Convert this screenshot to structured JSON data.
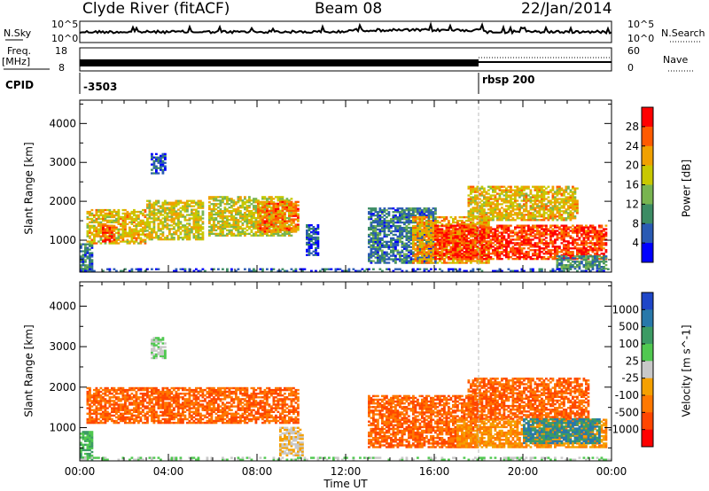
{
  "header": {
    "title": "Clyde River (fitACF)",
    "beam": "Beam 08",
    "date": "22/Jan/2014"
  },
  "strips": {
    "nsky_label": "N.Sky",
    "nsky_ticks": [
      "10^5",
      "10^0"
    ],
    "nsearch_label": "N.Search",
    "nsearch_ticks": [
      "10^5",
      "10^0"
    ],
    "freq_label": "Freq.",
    "freq_unit": "[MHz]",
    "freq_ticks": [
      "18",
      "8"
    ],
    "nave_label": "Nave",
    "nave_ticks": [
      "60",
      "0"
    ],
    "cpid_label": "CPID",
    "cpid_values": [
      {
        "label": "-3503",
        "start_hour": 0
      },
      {
        "label": "rbsp 200",
        "start_hour": 18
      }
    ]
  },
  "chart_data": [
    {
      "type": "heatmap",
      "name": "power-panel",
      "x_unit": "hours UT",
      "xlim": [
        0,
        24
      ],
      "ylim": [
        180,
        4600
      ],
      "ylabel": "Slant Range [km]",
      "yticks": [
        1000,
        2000,
        3000,
        4000
      ],
      "colorbar_label": "Power [dB]",
      "colorbar_ticks": [
        4,
        8,
        12,
        16,
        20,
        24,
        28
      ],
      "colorbar_range": [
        0,
        32
      ],
      "colorbar_colors": [
        "#0000ff",
        "#2a5ab3",
        "#3c8c64",
        "#78b450",
        "#c8c800",
        "#f0a000",
        "#ff5a00",
        "#ff0000"
      ],
      "features": [
        {
          "t0": 0.0,
          "t1": 0.6,
          "r0": 200,
          "r1": 900,
          "value": 8
        },
        {
          "t0": 0.3,
          "t1": 3.0,
          "r0": 900,
          "r1": 1800,
          "value": 20
        },
        {
          "t0": 1.0,
          "t1": 1.6,
          "r0": 950,
          "r1": 1400,
          "value": 28
        },
        {
          "t0": 3.2,
          "t1": 3.9,
          "r0": 2700,
          "r1": 3200,
          "value": 6
        },
        {
          "t0": 3.0,
          "t1": 5.5,
          "r0": 1000,
          "r1": 2000,
          "value": 18
        },
        {
          "t0": 5.8,
          "t1": 9.5,
          "r0": 1100,
          "r1": 2100,
          "value": 18
        },
        {
          "t0": 8.0,
          "t1": 9.8,
          "r0": 1200,
          "r1": 2000,
          "value": 24
        },
        {
          "t0": 10.2,
          "t1": 10.7,
          "r0": 600,
          "r1": 1400,
          "value": 6
        },
        {
          "t0": 13.0,
          "t1": 16.0,
          "r0": 400,
          "r1": 1800,
          "value": 8
        },
        {
          "t0": 15.0,
          "t1": 18.5,
          "r0": 400,
          "r1": 1600,
          "value": 22
        },
        {
          "t0": 16.0,
          "t1": 23.8,
          "r0": 500,
          "r1": 1400,
          "value": 28
        },
        {
          "t0": 17.5,
          "t1": 22.5,
          "r0": 1500,
          "r1": 2400,
          "value": 20
        },
        {
          "t0": 21.5,
          "t1": 23.8,
          "r0": 250,
          "r1": 600,
          "value": 10
        },
        {
          "t0": 0.0,
          "t1": 24.0,
          "r0": 190,
          "r1": 260,
          "value": 6
        }
      ]
    },
    {
      "type": "heatmap",
      "name": "velocity-panel",
      "x_unit": "hours UT",
      "xlim": [
        0,
        24
      ],
      "ylim": [
        180,
        4600
      ],
      "xlabel": "Time UT",
      "ylabel": "Slant Range [km]",
      "xticks": [
        "00:00",
        "04:00",
        "08:00",
        "12:00",
        "16:00",
        "20:00",
        "00:00"
      ],
      "yticks": [
        1000,
        2000,
        3000,
        4000
      ],
      "colorbar_label": "Velocity [m s^-1]",
      "colorbar_ticks": [
        1000,
        500,
        100,
        25,
        -25,
        -100,
        -500,
        -1000
      ],
      "colorbar_colors": [
        "#1e46c8",
        "#2878aa",
        "#3c9b64",
        "#50c850",
        "#c8c8c8",
        "#f5a000",
        "#ff7800",
        "#ff4600",
        "#ff0000"
      ],
      "features": [
        {
          "t0": 0.0,
          "t1": 0.6,
          "r0": 200,
          "r1": 900,
          "value": 100
        },
        {
          "t0": 0.3,
          "t1": 9.8,
          "r0": 1100,
          "r1": 2000,
          "value": -500
        },
        {
          "t0": 3.2,
          "t1": 3.9,
          "r0": 2700,
          "r1": 3200,
          "value": 25
        },
        {
          "t0": 9.0,
          "t1": 10.0,
          "r0": 300,
          "r1": 1000,
          "value": -25
        },
        {
          "t0": 13.0,
          "t1": 18.0,
          "r0": 500,
          "r1": 1800,
          "value": -500
        },
        {
          "t0": 17.0,
          "t1": 23.8,
          "r0": 500,
          "r1": 1200,
          "value": -100
        },
        {
          "t0": 17.5,
          "t1": 23.0,
          "r0": 1200,
          "r1": 2200,
          "value": -500
        },
        {
          "t0": 20.0,
          "t1": 23.5,
          "r0": 600,
          "r1": 1200,
          "value": 500
        },
        {
          "t0": 0.0,
          "t1": 24.0,
          "r0": 190,
          "r1": 260,
          "value": 25
        }
      ]
    }
  ]
}
